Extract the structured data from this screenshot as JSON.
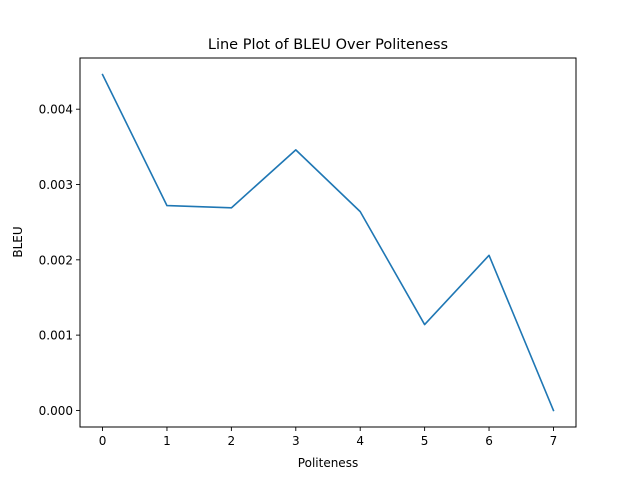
{
  "chart_data": {
    "type": "line",
    "title": "Line Plot of BLEU Over Politeness",
    "xlabel": "Politeness",
    "ylabel": "BLEU",
    "x": [
      0,
      1,
      2,
      3,
      4,
      5,
      6,
      7
    ],
    "series": [
      {
        "values": [
          0.00446,
          0.00272,
          0.00269,
          0.00346,
          0.00264,
          0.00114,
          0.00206,
          0.0
        ],
        "color": "#1f77b4"
      }
    ],
    "xlim": [
      -0.35,
      7.35
    ],
    "ylim": [
      -0.00022,
      0.00468
    ],
    "x_ticks": [
      0,
      1,
      2,
      3,
      4,
      5,
      6,
      7
    ],
    "x_tick_labels": [
      "0",
      "1",
      "2",
      "3",
      "4",
      "5",
      "6",
      "7"
    ],
    "y_ticks": [
      0.0,
      0.001,
      0.002,
      0.003,
      0.004
    ],
    "y_tick_labels": [
      "0.000",
      "0.001",
      "0.002",
      "0.003",
      "0.004"
    ],
    "grid": false,
    "legend": false
  }
}
